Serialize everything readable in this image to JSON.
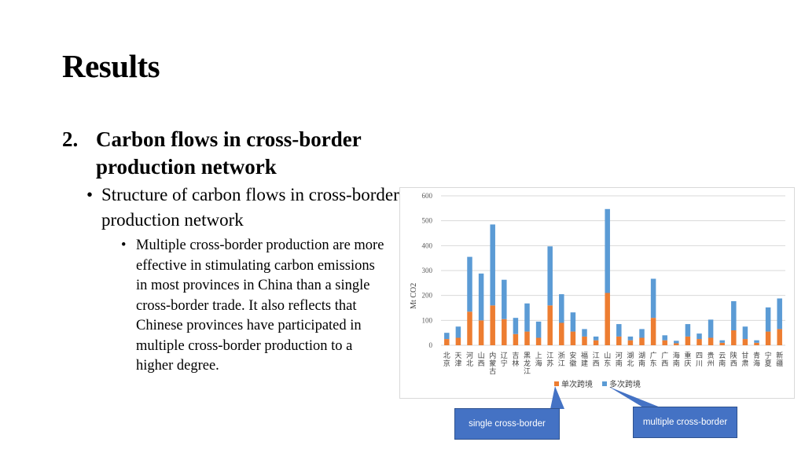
{
  "slide": {
    "title": "Results",
    "section_number": "2.",
    "section_heading": "Carbon flows in cross-border production network",
    "bullet_marker": "•",
    "subheading": "Structure of carbon flows in cross-border production network",
    "body": "Multiple cross-border production are more effective in stimulating carbon emissions in most provinces in China than a single cross-border trade. It also reflects that Chinese provinces have participated in multiple cross-border production to a higher degree."
  },
  "callouts": {
    "single": "single cross-border",
    "multiple": "multiple cross-border"
  },
  "colors": {
    "single": "#ed7d31",
    "multiple": "#5b9bd5",
    "callout": "#4472c4",
    "grid": "#d9d9d9"
  },
  "chart_data": {
    "type": "bar",
    "stacked": true,
    "title": "",
    "xlabel": "",
    "ylabel": "Mt CO2",
    "ylim": [
      0,
      600
    ],
    "yticks": [
      0,
      100,
      200,
      300,
      400,
      500,
      600
    ],
    "grid": true,
    "legend_position": "bottom",
    "categories": [
      "北京",
      "天津",
      "河北",
      "山西",
      "内蒙古",
      "辽宁",
      "吉林",
      "黑龙江",
      "上海",
      "江苏",
      "浙江",
      "安徽",
      "福建",
      "江西",
      "山东",
      "河南",
      "湖北",
      "湖南",
      "广东",
      "广西",
      "海南",
      "重庆",
      "四川",
      "贵州",
      "云南",
      "陕西",
      "甘肃",
      "青海",
      "宁夏",
      "新疆"
    ],
    "series": [
      {
        "name": "单次跨境",
        "values": [
          25,
          30,
          135,
          100,
          160,
          105,
          45,
          55,
          30,
          160,
          90,
          55,
          35,
          20,
          210,
          35,
          20,
          30,
          110,
          20,
          8,
          35,
          25,
          30,
          10,
          60,
          25,
          10,
          55,
          65
        ]
      },
      {
        "name": "多次跨境",
        "values": [
          25,
          45,
          220,
          188,
          325,
          158,
          65,
          113,
          65,
          237,
          115,
          77,
          30,
          15,
          337,
          50,
          15,
          35,
          157,
          20,
          10,
          50,
          22,
          73,
          10,
          117,
          50,
          10,
          97,
          123
        ]
      }
    ]
  }
}
